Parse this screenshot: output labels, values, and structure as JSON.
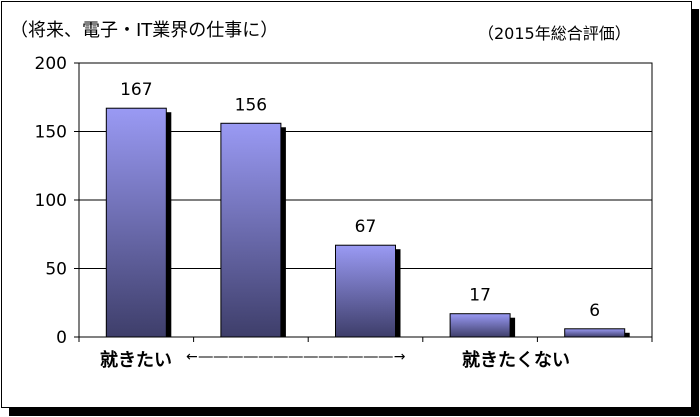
{
  "header": {
    "title": "（将来、電子・IT業界の仕事に）",
    "subtitle": "（2015年総合評価）"
  },
  "footer": {
    "left_caption": "就きたい",
    "arrow_caption": "←―――――――――――――→",
    "right_caption": "就きたくない"
  },
  "colors": {
    "bar_top": "#9a9af4",
    "bar_bottom": "#3e3e6a",
    "bar_shadow": "#000000",
    "grid": "#000000"
  },
  "chart_data": {
    "type": "bar",
    "title": "（将来、電子・IT業界の仕事に）",
    "subtitle": "（2015年総合評価）",
    "categories": [
      "",
      "",
      "",
      "",
      ""
    ],
    "values": [
      167,
      156,
      67,
      17,
      6
    ],
    "data_labels": [
      "167",
      "156",
      "67",
      "17",
      "6"
    ],
    "y_ticks": [
      0,
      50,
      100,
      150,
      200
    ],
    "ylim": [
      0,
      200
    ],
    "grid": true,
    "legend": "none"
  }
}
